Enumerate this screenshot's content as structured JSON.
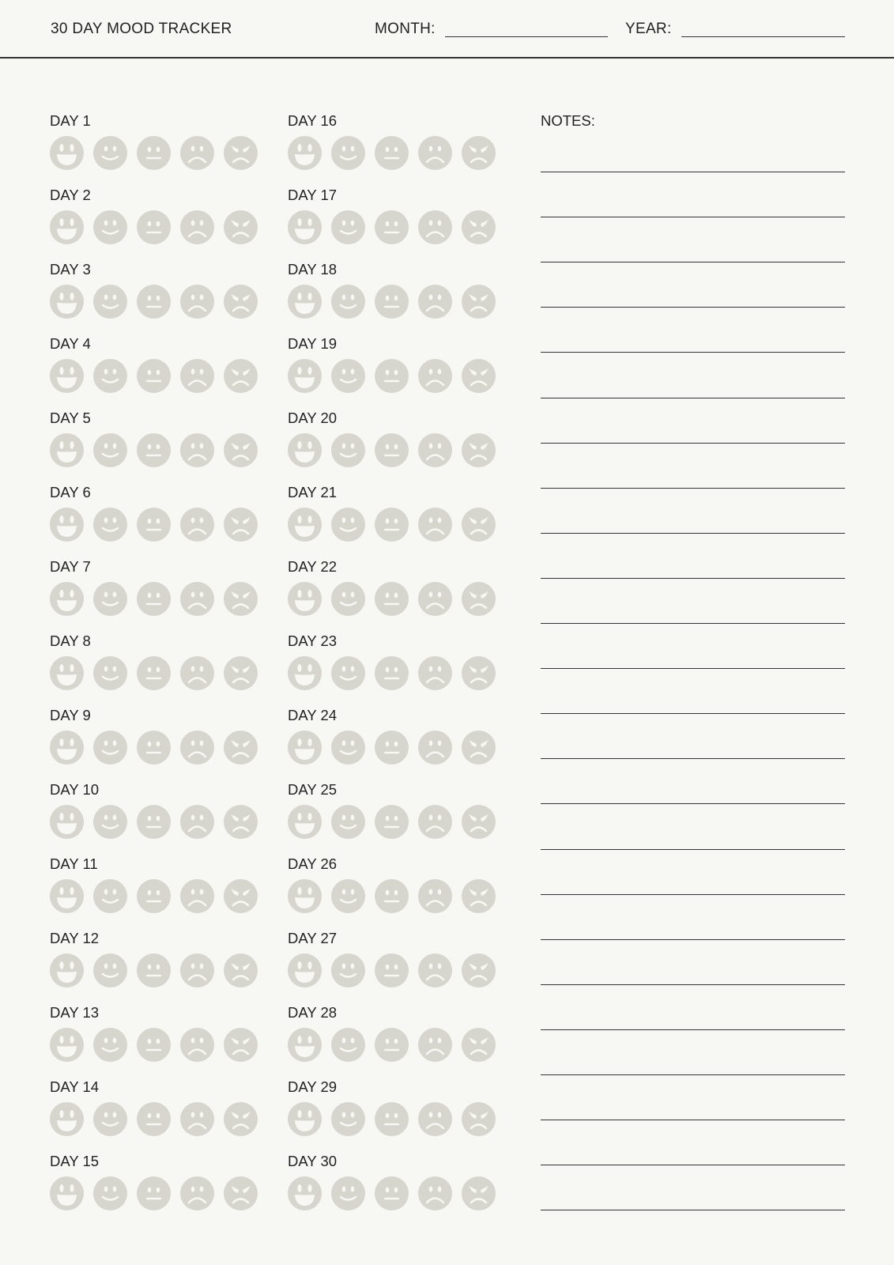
{
  "header": {
    "title": "30 DAY MOOD TRACKER",
    "month_label": "MONTH:",
    "year_label": "YEAR:"
  },
  "notes": {
    "label": "NOTES:",
    "line_count": 24
  },
  "moods": [
    "very-happy",
    "happy",
    "neutral",
    "sad",
    "angry"
  ],
  "colors": {
    "background": "#f7f7f3",
    "face": "#d6d6ce",
    "ink": "#222222"
  },
  "days": [
    "DAY 1",
    "DAY 2",
    "DAY 3",
    "DAY 4",
    "DAY 5",
    "DAY 6",
    "DAY 7",
    "DAY 8",
    "DAY 9",
    "DAY 10",
    "DAY 11",
    "DAY 12",
    "DAY 13",
    "DAY 14",
    "DAY 15",
    "DAY 16",
    "DAY 17",
    "DAY 18",
    "DAY 19",
    "DAY 20",
    "DAY 21",
    "DAY 22",
    "DAY 23",
    "DAY 24",
    "DAY 25",
    "DAY 26",
    "DAY 27",
    "DAY 28",
    "DAY 29",
    "DAY 30"
  ]
}
